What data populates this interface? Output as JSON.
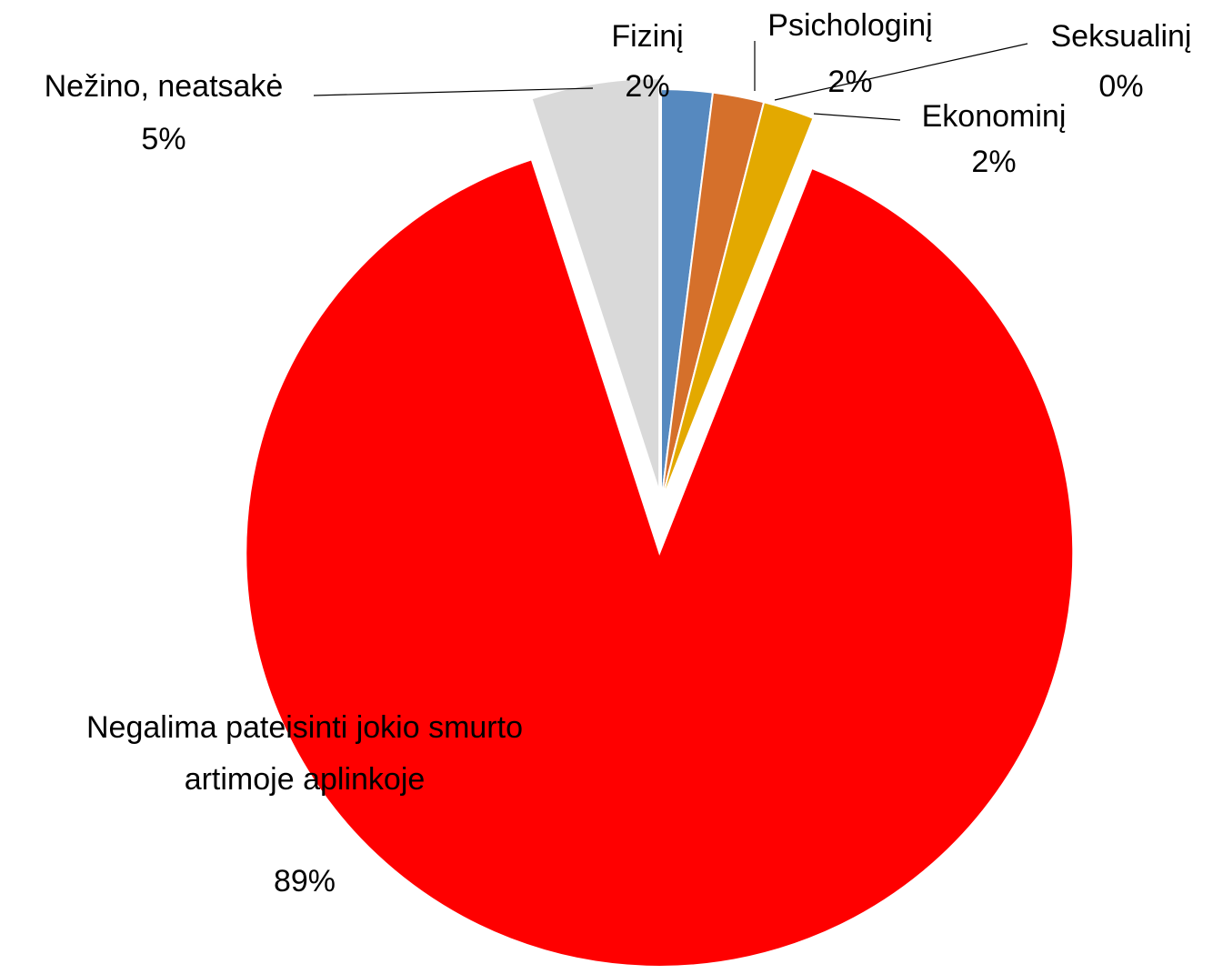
{
  "chart_data": {
    "type": "pie",
    "categories": [
      "Fizinį",
      "Psichologinį",
      "Seksualinį",
      "Ekonominį",
      "Negalima pateisinti jokio smurto artimoje aplinkoje",
      "Nežino, neatsakė"
    ],
    "values": [
      2,
      2,
      0,
      2,
      89,
      5
    ],
    "value_labels": [
      "2%",
      "2%",
      "0%",
      "2%",
      "89%",
      "5%"
    ],
    "colors": [
      "#5689bf",
      "#d5702b",
      "#e3a900",
      "#ff0000",
      "#ff0000",
      "#d9d9d9"
    ]
  }
}
